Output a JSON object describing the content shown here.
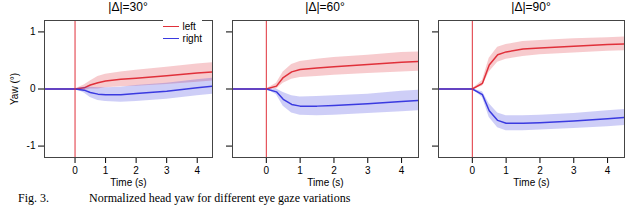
{
  "chart_data": [
    {
      "type": "line",
      "title": "|Δ|=30°",
      "x_label": "Time (s)",
      "y_label": "Yaw (°)",
      "x": [
        -1,
        0,
        0.3,
        0.5,
        0.75,
        1,
        1.5,
        2,
        3,
        4,
        4.5
      ],
      "series": [
        {
          "name": "left",
          "color": "#e0303a",
          "values": [
            0,
            0,
            0.02,
            0.07,
            0.11,
            0.14,
            0.17,
            0.19,
            0.23,
            0.28,
            0.3
          ],
          "lower": [
            0,
            0,
            -0.03,
            0.0,
            0.0,
            0.02,
            0.04,
            0.05,
            0.08,
            0.12,
            0.14
          ],
          "upper": [
            0,
            0,
            0.07,
            0.14,
            0.22,
            0.26,
            0.3,
            0.33,
            0.38,
            0.44,
            0.46
          ]
        },
        {
          "name": "right",
          "color": "#3a3ae0",
          "values": [
            0,
            0,
            -0.02,
            -0.06,
            -0.09,
            -0.1,
            -0.1,
            -0.08,
            -0.04,
            0.02,
            0.05
          ],
          "lower": [
            0,
            0,
            -0.07,
            -0.15,
            -0.2,
            -0.22,
            -0.23,
            -0.22,
            -0.18,
            -0.12,
            -0.09
          ],
          "upper": [
            0,
            0,
            0.03,
            0.03,
            0.02,
            0.02,
            0.03,
            0.06,
            0.1,
            0.16,
            0.19
          ]
        }
      ],
      "vline": 0,
      "xlim": [
        -1,
        4.5
      ],
      "ylim": [
        -1.2,
        1.2
      ],
      "xticks": [
        0,
        1,
        2,
        3,
        4
      ],
      "yticks": [
        -1,
        0,
        1
      ],
      "legend": "upper right"
    },
    {
      "type": "line",
      "title": "|Δ|=60°",
      "x_label": "Time (s)",
      "x": [
        -1,
        0,
        0.3,
        0.5,
        0.75,
        1,
        1.5,
        2,
        3,
        4,
        4.5
      ],
      "series": [
        {
          "name": "left",
          "color": "#e0303a",
          "values": [
            0,
            0,
            0.05,
            0.2,
            0.3,
            0.34,
            0.37,
            0.39,
            0.43,
            0.47,
            0.48
          ],
          "lower": [
            0,
            0,
            0.0,
            0.1,
            0.17,
            0.2,
            0.22,
            0.24,
            0.27,
            0.3,
            0.31
          ],
          "upper": [
            0,
            0,
            0.1,
            0.3,
            0.43,
            0.48,
            0.52,
            0.55,
            0.59,
            0.64,
            0.65
          ]
        },
        {
          "name": "right",
          "color": "#3a3ae0",
          "values": [
            0,
            0,
            -0.05,
            -0.18,
            -0.27,
            -0.3,
            -0.3,
            -0.29,
            -0.26,
            -0.22,
            -0.2
          ],
          "lower": [
            0,
            0,
            -0.1,
            -0.3,
            -0.42,
            -0.46,
            -0.47,
            -0.46,
            -0.43,
            -0.4,
            -0.38
          ],
          "upper": [
            0,
            0,
            0.0,
            -0.06,
            -0.12,
            -0.14,
            -0.13,
            -0.12,
            -0.09,
            -0.04,
            -0.02
          ]
        }
      ],
      "vline": 0,
      "xlim": [
        -1,
        4.5
      ],
      "ylim": [
        -1.2,
        1.2
      ],
      "xticks": [
        0,
        1,
        2,
        3,
        4
      ],
      "yticks": [
        -1,
        0,
        1
      ],
      "tick_labels": "x"
    },
    {
      "type": "line",
      "title": "|Δ|=90°",
      "x_label": "Time (s)",
      "x": [
        -1,
        0,
        0.3,
        0.5,
        0.75,
        1,
        1.5,
        2,
        3,
        4,
        4.5
      ],
      "series": [
        {
          "name": "left",
          "color": "#e0303a",
          "values": [
            0,
            0,
            0.1,
            0.42,
            0.6,
            0.65,
            0.7,
            0.72,
            0.75,
            0.78,
            0.79
          ],
          "lower": [
            0,
            0,
            0.05,
            0.3,
            0.47,
            0.52,
            0.57,
            0.6,
            0.63,
            0.66,
            0.67
          ],
          "upper": [
            0,
            0,
            0.15,
            0.54,
            0.73,
            0.78,
            0.83,
            0.85,
            0.88,
            0.9,
            0.91
          ]
        },
        {
          "name": "right",
          "color": "#3a3ae0",
          "values": [
            0,
            0,
            -0.1,
            -0.38,
            -0.55,
            -0.6,
            -0.6,
            -0.59,
            -0.56,
            -0.52,
            -0.5
          ],
          "lower": [
            0,
            0,
            -0.15,
            -0.5,
            -0.68,
            -0.73,
            -0.73,
            -0.72,
            -0.69,
            -0.66,
            -0.64
          ],
          "upper": [
            0,
            0,
            -0.05,
            -0.26,
            -0.42,
            -0.47,
            -0.47,
            -0.46,
            -0.43,
            -0.38,
            -0.36
          ]
        }
      ],
      "vline": 0,
      "xlim": [
        -1,
        4.5
      ],
      "ylim": [
        -1.2,
        1.2
      ],
      "xticks": [
        0,
        1,
        2,
        3,
        4
      ],
      "yticks": [
        -1,
        0,
        1
      ],
      "tick_labels": "x"
    }
  ],
  "figure_caption": {
    "label": "Fig. 3.",
    "text": "Normalized head yaw for different eye gaze variations"
  }
}
